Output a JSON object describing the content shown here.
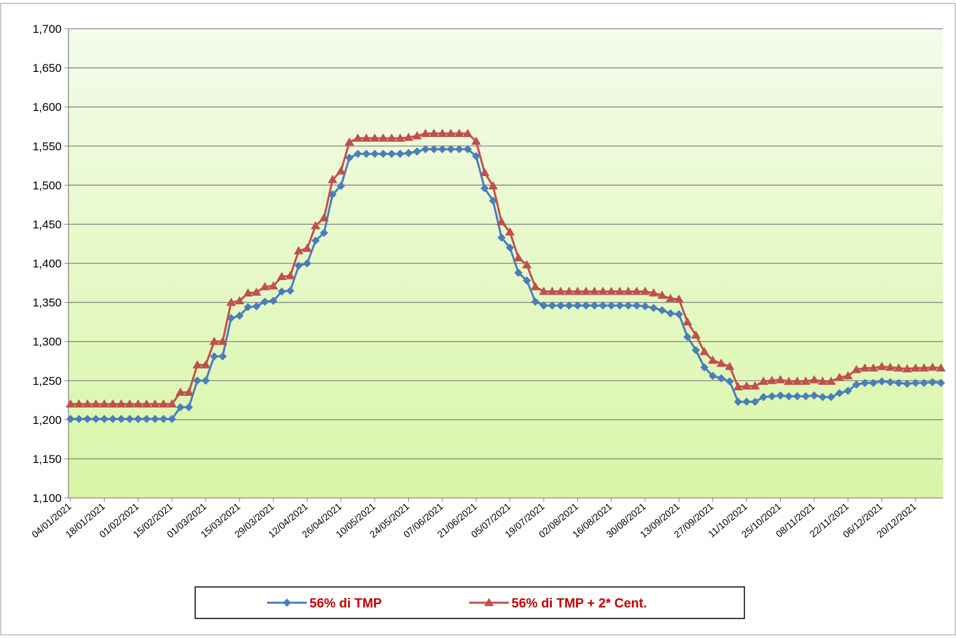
{
  "chart_data": {
    "type": "line",
    "categories": [
      "04/01/2021",
      null,
      null,
      null,
      "18/01/2021",
      null,
      null,
      null,
      "01/02/2021",
      null,
      null,
      null,
      "15/02/2021",
      null,
      null,
      null,
      "01/03/2021",
      null,
      null,
      null,
      "15/03/2021",
      null,
      null,
      null,
      "29/03/2021",
      null,
      null,
      null,
      "12/04/2021",
      null,
      null,
      null,
      "26/04/2021",
      null,
      null,
      null,
      "10/05/2021",
      null,
      null,
      null,
      "24/05/2021",
      null,
      null,
      null,
      "07/06/2021",
      null,
      null,
      null,
      "21/06/2021",
      null,
      null,
      null,
      "05/07/2021",
      null,
      null,
      null,
      "19/07/2021",
      null,
      null,
      null,
      "02/08/2021",
      null,
      null,
      null,
      "16/08/2021",
      null,
      null,
      null,
      "30/08/2021",
      null,
      null,
      null,
      "13/09/2021",
      null,
      null,
      null,
      "27/09/2021",
      null,
      null,
      null,
      "11/10/2021",
      null,
      null,
      null,
      "25/10/2021",
      null,
      null,
      null,
      "08/11/2021",
      null,
      null,
      null,
      "22/11/2021",
      null,
      null,
      null,
      "06/12/2021",
      null,
      null,
      null,
      "20/12/2021",
      null,
      null,
      null
    ],
    "series": [
      {
        "name": "56% di TMP",
        "color": "#4a7ebb",
        "marker": "diamond",
        "values": [
          1201,
          1201,
          1201,
          1201,
          1201,
          1201,
          1201,
          1201,
          1201,
          1201,
          1201,
          1201,
          1201,
          1216,
          1216,
          1250,
          1250,
          1281,
          1281,
          1330,
          1333,
          1344,
          1345,
          1351,
          1352,
          1364,
          1365,
          1397,
          1400,
          1429,
          1439,
          1488,
          1499,
          1535,
          1540,
          1540,
          1540,
          1540,
          1540,
          1540,
          1541,
          1543,
          1546,
          1546,
          1546,
          1546,
          1546,
          1546,
          1537,
          1496,
          1480,
          1433,
          1420,
          1388,
          1378,
          1351,
          1346,
          1346,
          1346,
          1346,
          1346,
          1346,
          1346,
          1346,
          1346,
          1346,
          1346,
          1346,
          1345,
          1343,
          1340,
          1336,
          1335,
          1306,
          1289,
          1267,
          1256,
          1253,
          1249,
          1223,
          1223,
          1223,
          1229,
          1230,
          1231,
          1230,
          1230,
          1230,
          1231,
          1229,
          1229,
          1234,
          1237,
          1245,
          1247,
          1247,
          1249,
          1248,
          1247,
          1246,
          1247,
          1247,
          1248,
          1247
        ]
      },
      {
        "name": "56% di TMP + 2* Cent.",
        "color": "#c0504d",
        "marker": "triangle",
        "values": [
          1220,
          1220,
          1220,
          1220,
          1220,
          1220,
          1220,
          1220,
          1220,
          1220,
          1220,
          1220,
          1220,
          1235,
          1235,
          1270,
          1270,
          1300,
          1300,
          1350,
          1352,
          1362,
          1363,
          1370,
          1371,
          1383,
          1384,
          1416,
          1419,
          1448,
          1458,
          1507,
          1518,
          1555,
          1560,
          1560,
          1560,
          1560,
          1560,
          1560,
          1561,
          1563,
          1566,
          1566,
          1566,
          1566,
          1566,
          1566,
          1556,
          1516,
          1499,
          1453,
          1440,
          1407,
          1398,
          1370,
          1364,
          1364,
          1364,
          1364,
          1364,
          1364,
          1364,
          1364,
          1364,
          1364,
          1364,
          1364,
          1364,
          1362,
          1359,
          1355,
          1354,
          1325,
          1308,
          1287,
          1276,
          1272,
          1268,
          1242,
          1243,
          1243,
          1249,
          1250,
          1251,
          1249,
          1249,
          1249,
          1251,
          1249,
          1249,
          1254,
          1256,
          1264,
          1266,
          1266,
          1268,
          1267,
          1266,
          1265,
          1266,
          1266,
          1267,
          1266
        ]
      }
    ],
    "ylim": [
      1100,
      1700
    ],
    "yticks": [
      {
        "value": 1100,
        "label": "1,100"
      },
      {
        "value": 1150,
        "label": "1,150"
      },
      {
        "value": 1200,
        "label": "1,200"
      },
      {
        "value": 1250,
        "label": "1,250"
      },
      {
        "value": 1300,
        "label": "1,300"
      },
      {
        "value": 1350,
        "label": "1,350"
      },
      {
        "value": 1400,
        "label": "1,400"
      },
      {
        "value": 1450,
        "label": "1,450"
      },
      {
        "value": 1500,
        "label": "1,500"
      },
      {
        "value": 1550,
        "label": "1,550"
      },
      {
        "value": 1600,
        "label": "1,600"
      },
      {
        "value": 1650,
        "label": "1,650"
      },
      {
        "value": 1700,
        "label": "1,700"
      }
    ],
    "grid": true,
    "legend": "bottom"
  }
}
